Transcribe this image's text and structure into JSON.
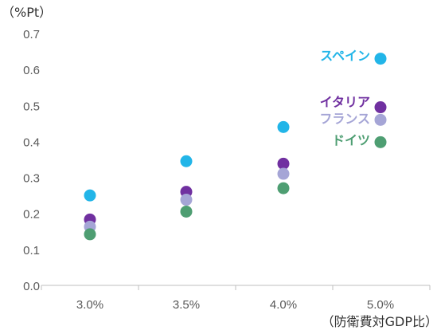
{
  "chart_data": {
    "type": "scatter",
    "ylabel": "（%Pt）",
    "xlabel": "（防衛費対GDP比）",
    "categories": [
      "3.0%",
      "3.5%",
      "4.0%",
      "5.0%"
    ],
    "ylim": [
      0,
      0.7
    ],
    "yticks": [
      "0.0",
      "0.1",
      "0.2",
      "0.3",
      "0.4",
      "0.5",
      "0.6",
      "0.7"
    ],
    "grid": false,
    "series": [
      {
        "name": "スペイン",
        "color": "#22b5e8",
        "values": [
          0.25,
          0.345,
          0.44,
          0.63
        ]
      },
      {
        "name": "イタリア",
        "color": "#7030a0",
        "values": [
          0.183,
          0.26,
          0.338,
          0.495
        ]
      },
      {
        "name": "フランス",
        "color": "#a5a5d6",
        "values": [
          0.163,
          0.238,
          0.31,
          0.46
        ]
      },
      {
        "name": "ドイツ",
        "color": "#4e9e72",
        "values": [
          0.142,
          0.205,
          0.27,
          0.398
        ]
      }
    ]
  }
}
